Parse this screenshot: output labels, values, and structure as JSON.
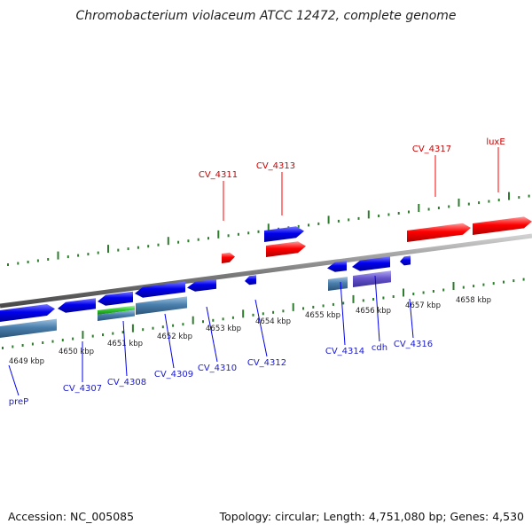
{
  "title": "Chromobacterium violaceum ATCC 12472, complete genome",
  "footer": {
    "accession": "Accession: NC_005085",
    "summary": "Topology: circular; Length: 4,751,080 bp; Genes: 4,530"
  },
  "colors": {
    "forward_gene": "#ff0000",
    "reverse_gene": "#0000ee",
    "label_forward": "#cc0000",
    "label_reverse": "#1a1acc",
    "backbone": "#808080",
    "ticks": "#2e7d2e",
    "feature_steel": "#4a7fad",
    "feature_green": "#33cc33",
    "feature_purple": "#6655cc"
  },
  "kbp_ticks": [
    "4649 kbp",
    "4650 kbp",
    "4651 kbp",
    "4652 kbp",
    "4653 kbp",
    "4654 kbp",
    "4655 kbp",
    "4656 kbp",
    "4657 kbp",
    "4658 kbp"
  ],
  "gene_labels_forward": [
    "CV_4311",
    "CV_4313",
    "CV_4317",
    "luxE"
  ],
  "gene_labels_reverse": [
    "preP",
    "CV_4307",
    "CV_4308",
    "CV_4309",
    "CV_4310",
    "CV_4312",
    "CV_4314",
    "cdh",
    "CV_4316"
  ]
}
